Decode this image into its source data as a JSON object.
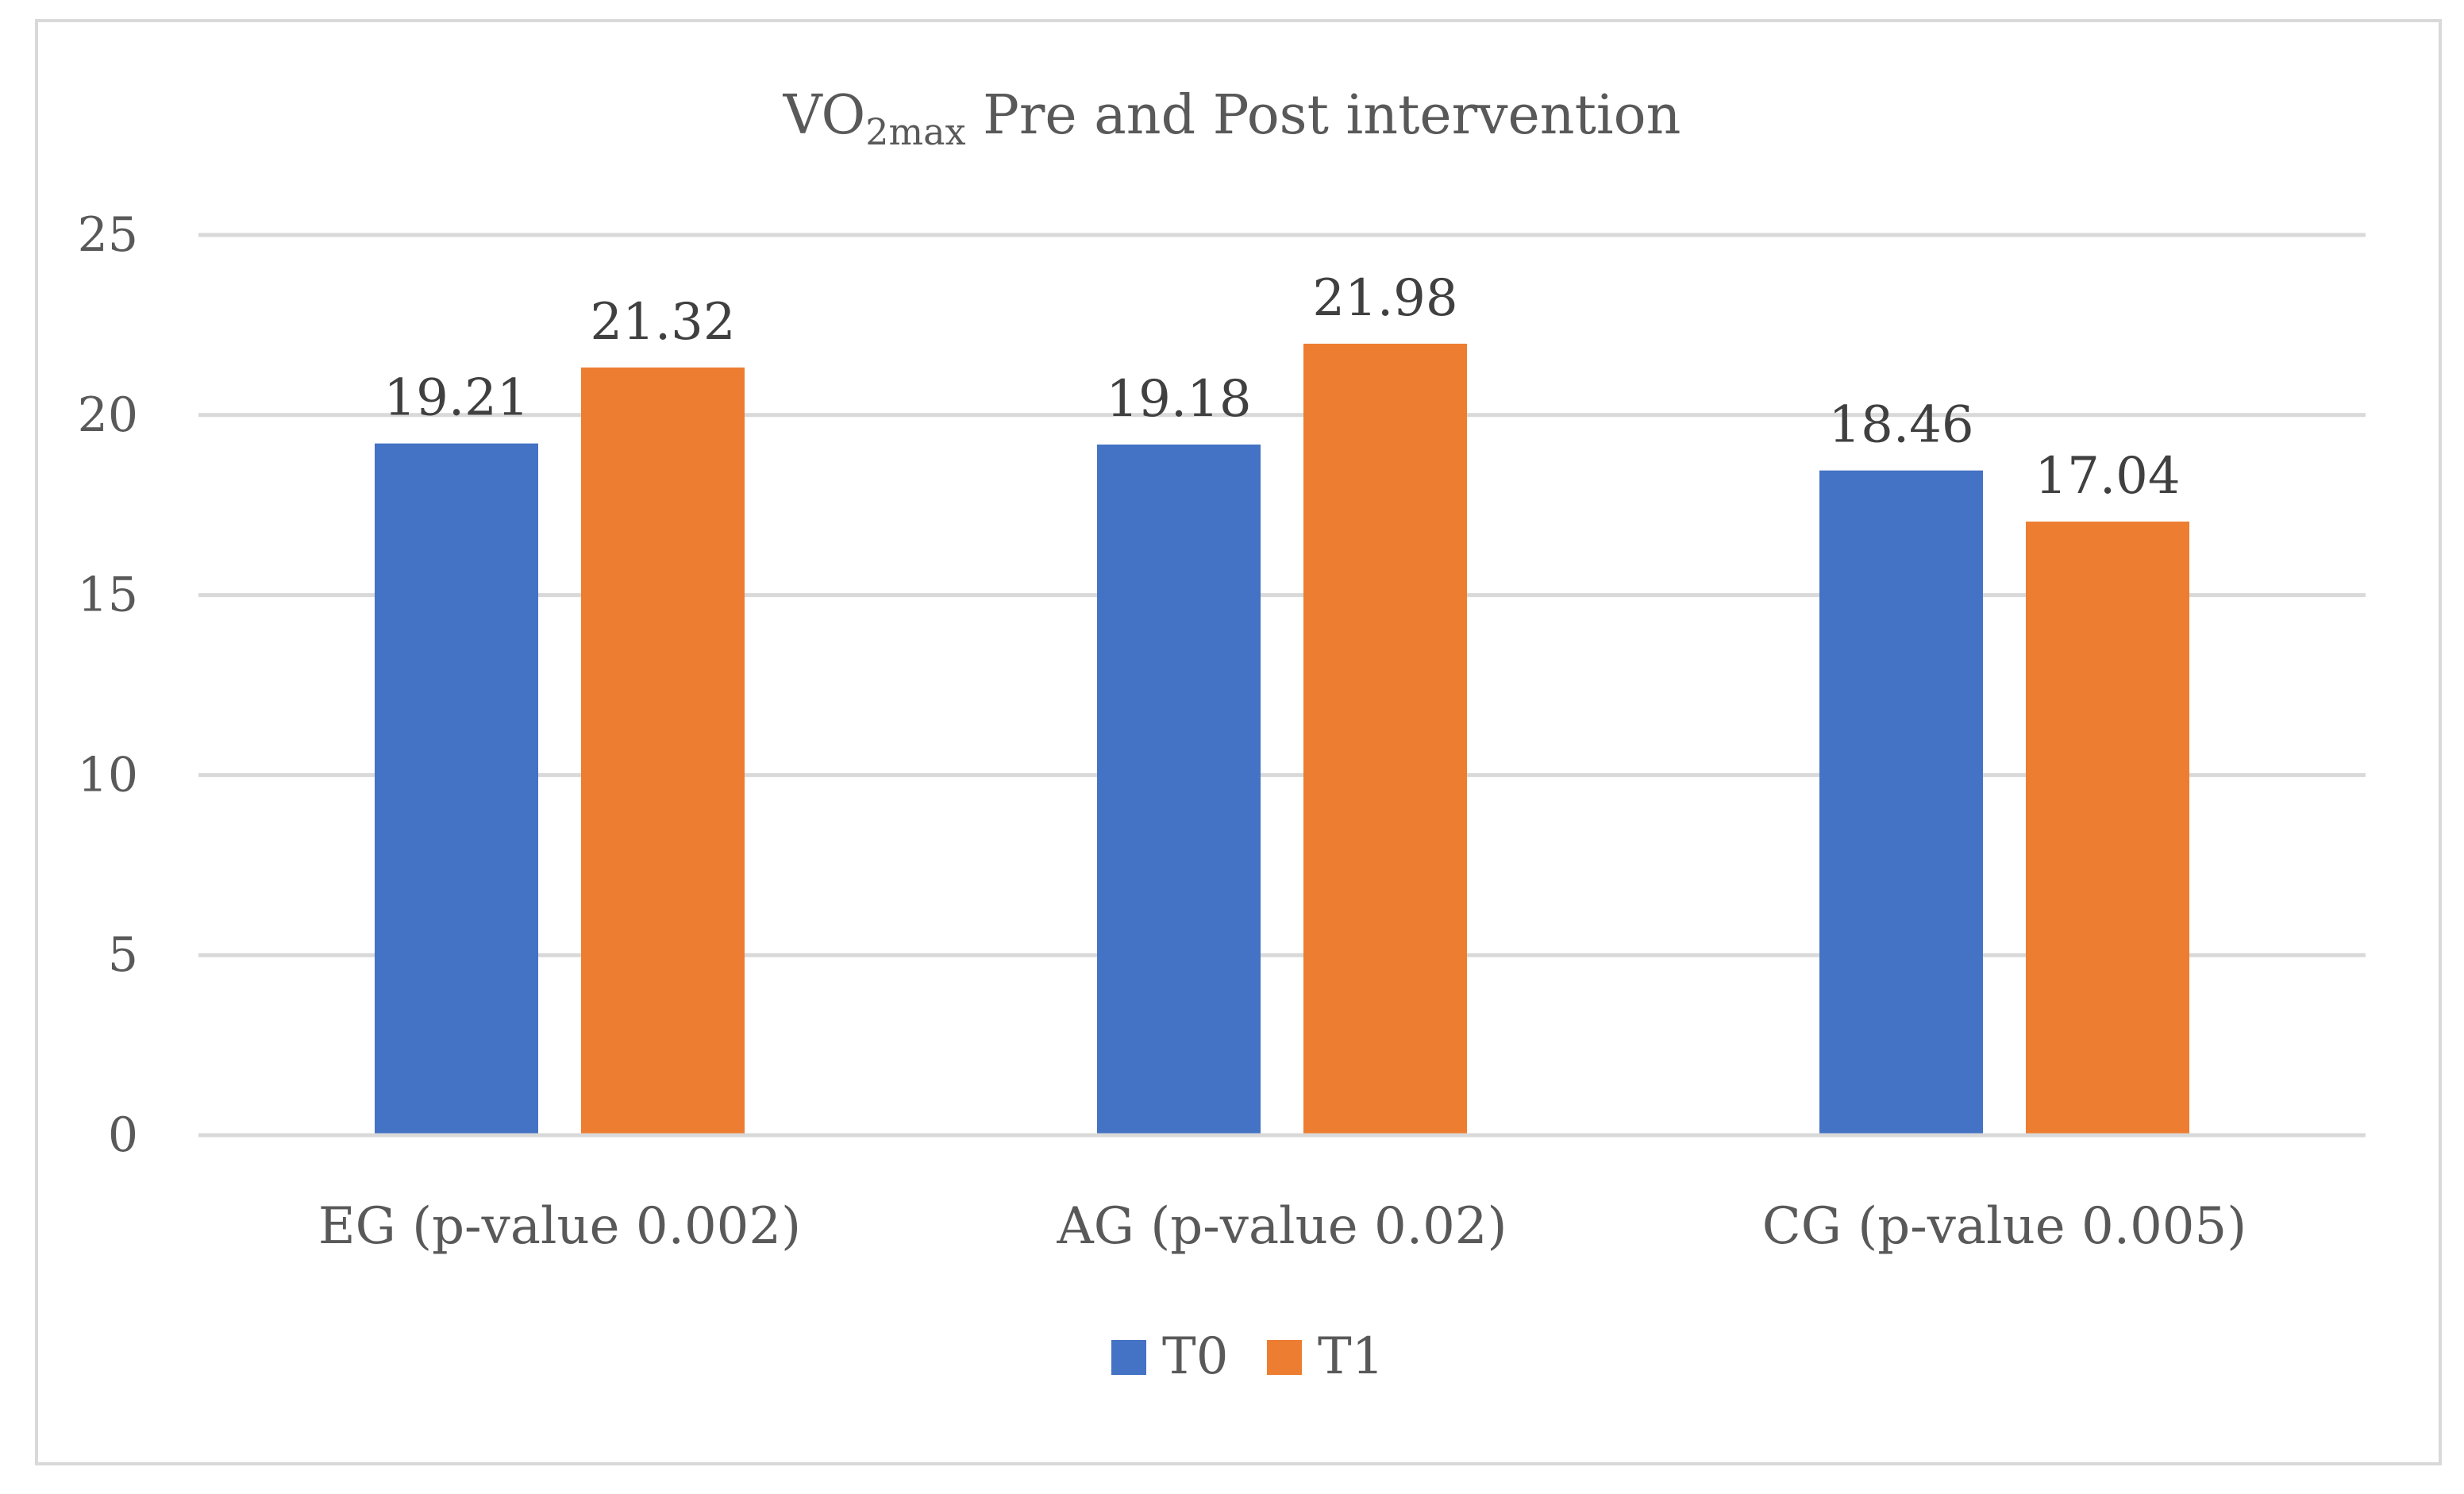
{
  "chart_data": {
    "type": "bar",
    "title": {
      "main": "VO",
      "subscript": "2max",
      "rest": " Pre and Post intervention"
    },
    "xlabel": "",
    "ylabel": "",
    "ylim": [
      0,
      25
    ],
    "yticks": [
      0,
      5,
      10,
      15,
      20,
      25
    ],
    "grid": true,
    "legend_position": "bottom",
    "categories": [
      "EG (p-value 0.002)",
      "AG (p-value 0.02)",
      "CG (p-value 0.005)"
    ],
    "series": [
      {
        "name": "T0",
        "color": "#4472c4",
        "values": [
          19.21,
          19.18,
          18.46
        ],
        "labels": [
          "19.21",
          "19.18",
          "18.46"
        ]
      },
      {
        "name": "T1",
        "color": "#ed7d31",
        "values": [
          21.32,
          21.98,
          17.04
        ],
        "labels": [
          "21.32",
          "21.98",
          "17.04"
        ]
      }
    ]
  }
}
